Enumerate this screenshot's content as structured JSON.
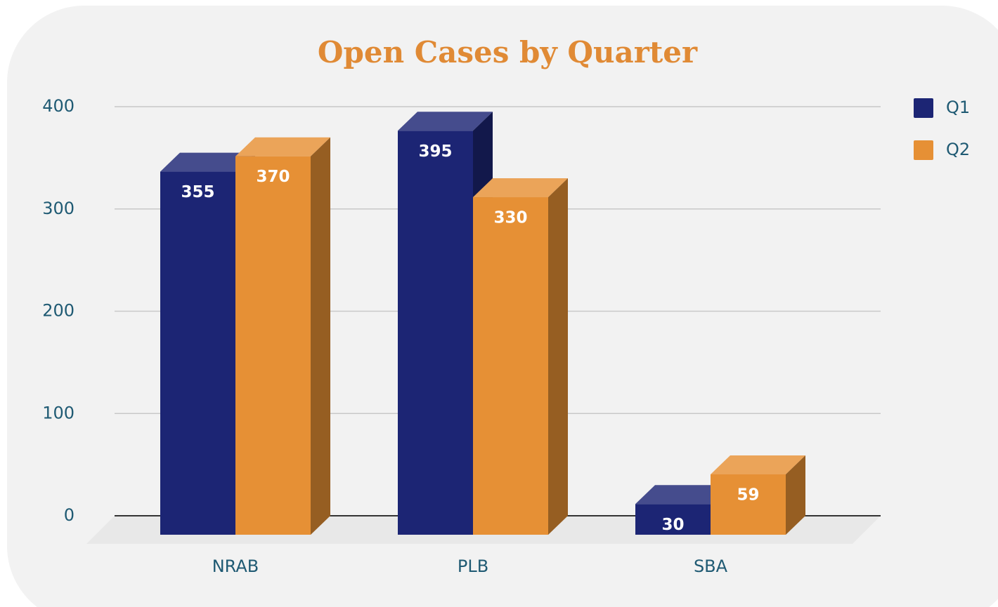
{
  "chart_data": {
    "type": "bar",
    "title": "Open Cases by Quarter",
    "categories": [
      "NRAB",
      "PLB",
      "SBA"
    ],
    "series": [
      {
        "name": "Q1",
        "color": "#1c2574",
        "values": [
          355,
          395,
          30
        ]
      },
      {
        "name": "Q2",
        "color": "#e69035",
        "values": [
          370,
          330,
          59
        ]
      }
    ],
    "ylim": [
      0,
      400
    ],
    "yticks": [
      0,
      100,
      200,
      300,
      400
    ],
    "grid": true,
    "legend": "top-right"
  }
}
